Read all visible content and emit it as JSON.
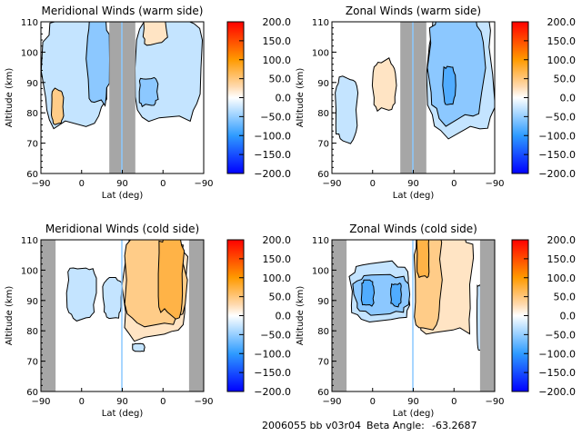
{
  "footer": {
    "run_id": "2006055 bb v03r04",
    "beta_label": "Beta Angle:",
    "beta_value": "-63.2687"
  },
  "colorbar": {
    "ticks": [
      "200.0",
      "150.0",
      "100.0",
      "50.0",
      "0.0",
      "-50.0",
      "-100.0",
      "-150.0",
      "-200.0"
    ],
    "range": [
      -200,
      200
    ],
    "stops": [
      {
        "v": 200,
        "color": "#ff0000"
      },
      {
        "v": 100,
        "color": "#ff9a00"
      },
      {
        "v": 30,
        "color": "#ffd9ad"
      },
      {
        "v": 0,
        "color": "#ffffff"
      },
      {
        "v": -30,
        "color": "#bfe2ff"
      },
      {
        "v": -100,
        "color": "#2e9bff"
      },
      {
        "v": -200,
        "color": "#0000ff"
      }
    ]
  },
  "fill_levels": {
    "pos1": "#ffe4c4",
    "pos2": "#ffcc88",
    "pos3": "#ffb347",
    "neg1": "#c4e4ff",
    "neg2": "#8cc8ff",
    "neg3": "#50acff",
    "missing": "#a6a6a6"
  },
  "chart_data": [
    {
      "type": "heatmap",
      "title": "Meridional Winds (warm side)",
      "xlabel": "Lat (deg)",
      "ylabel": "Altitude (km)",
      "xticks": [
        "-90",
        "0",
        "90",
        "0",
        "-90"
      ],
      "yticks": [
        "60",
        "70",
        "80",
        "90",
        "100",
        "110"
      ],
      "ylim": [
        60,
        110
      ],
      "missing_band_lat_index": [
        0.42,
        0.58
      ],
      "features": [
        {
          "level": "neg1",
          "lat_range": [
            0.0,
            0.42
          ],
          "alt_range": [
            74,
            110
          ]
        },
        {
          "level": "neg2",
          "lat_range": [
            0.28,
            0.42
          ],
          "alt_range": [
            82,
            110
          ]
        },
        {
          "level": "pos2",
          "lat_range": [
            0.06,
            0.14
          ],
          "alt_range": [
            76,
            88
          ]
        },
        {
          "level": "neg1",
          "lat_range": [
            0.58,
            1.0
          ],
          "alt_range": [
            76,
            110
          ]
        },
        {
          "level": "neg2",
          "lat_range": [
            0.6,
            0.72
          ],
          "alt_range": [
            82,
            92
          ]
        },
        {
          "level": "pos1",
          "lat_range": [
            0.62,
            0.78
          ],
          "alt_range": [
            102,
            110
          ]
        }
      ]
    },
    {
      "type": "heatmap",
      "title": "Zonal Winds (warm side)",
      "xlabel": "Lat (deg)",
      "ylabel": "Altitude (km)",
      "xticks": [
        "-90",
        "0",
        "90",
        "0",
        "-90"
      ],
      "yticks": [
        "60",
        "70",
        "80",
        "90",
        "100",
        "110"
      ],
      "ylim": [
        60,
        110
      ],
      "missing_band_lat_index": [
        0.42,
        0.58
      ],
      "features": [
        {
          "level": "pos1",
          "lat_range": [
            0.25,
            0.4
          ],
          "alt_range": [
            80,
            98
          ]
        },
        {
          "level": "neg1",
          "lat_range": [
            0.02,
            0.16
          ],
          "alt_range": [
            70,
            92
          ]
        },
        {
          "level": "neg1",
          "lat_range": [
            0.58,
            1.0
          ],
          "alt_range": [
            72,
            110
          ]
        },
        {
          "level": "neg2",
          "lat_range": [
            0.58,
            0.95
          ],
          "alt_range": [
            76,
            110
          ]
        },
        {
          "level": "neg3",
          "lat_range": [
            0.68,
            0.76
          ],
          "alt_range": [
            82,
            96
          ]
        }
      ]
    },
    {
      "type": "heatmap",
      "title": "Meridional Winds (cold side)",
      "xlabel": "Lat (deg)",
      "ylabel": "Altitude (km)",
      "xticks": [
        "-90",
        "0",
        "90",
        "0",
        "-90"
      ],
      "yticks": [
        "60",
        "70",
        "80",
        "90",
        "100",
        "110"
      ],
      "ylim": [
        60,
        110
      ],
      "missing_band_lat_index": [
        [
          0.0,
          0.09
        ],
        [
          0.91,
          1.0
        ]
      ],
      "features": [
        {
          "level": "neg1",
          "lat_range": [
            0.16,
            0.34
          ],
          "alt_range": [
            83,
            102
          ]
        },
        {
          "level": "neg1",
          "lat_range": [
            0.38,
            0.5
          ],
          "alt_range": [
            84,
            98
          ]
        },
        {
          "level": "pos1",
          "lat_range": [
            0.5,
            0.9
          ],
          "alt_range": [
            76,
            110
          ]
        },
        {
          "level": "pos2",
          "lat_range": [
            0.5,
            0.9
          ],
          "alt_range": [
            80,
            110
          ]
        },
        {
          "level": "pos3",
          "lat_range": [
            0.72,
            0.88
          ],
          "alt_range": [
            84,
            110
          ]
        },
        {
          "level": "neg1",
          "lat_range": [
            0.56,
            0.64
          ],
          "alt_range": [
            73,
            76
          ]
        }
      ]
    },
    {
      "type": "heatmap",
      "title": "Zonal Winds (cold side)",
      "xlabel": "Lat (deg)",
      "ylabel": "Altitude (km)",
      "xticks": [
        "-90",
        "0",
        "90",
        "0",
        "-90"
      ],
      "yticks": [
        "60",
        "70",
        "80",
        "90",
        "100",
        "110"
      ],
      "ylim": [
        60,
        110
      ],
      "missing_band_lat_index": [
        [
          0.0,
          0.09
        ],
        [
          0.91,
          1.0
        ]
      ],
      "features": [
        {
          "level": "neg1",
          "lat_range": [
            0.1,
            0.5
          ],
          "alt_range": [
            83,
            103
          ]
        },
        {
          "level": "neg2",
          "lat_range": [
            0.12,
            0.48
          ],
          "alt_range": [
            85,
            99
          ]
        },
        {
          "level": "neg3",
          "lat_range": [
            0.18,
            0.26
          ],
          "alt_range": [
            88,
            97
          ]
        },
        {
          "level": "neg3",
          "lat_range": [
            0.36,
            0.43
          ],
          "alt_range": [
            88,
            96
          ]
        },
        {
          "level": "pos1",
          "lat_range": [
            0.5,
            0.88
          ],
          "alt_range": [
            77,
            110
          ]
        },
        {
          "level": "pos2",
          "lat_range": [
            0.5,
            0.68
          ],
          "alt_range": [
            80,
            110
          ]
        },
        {
          "level": "pos3",
          "lat_range": [
            0.52,
            0.6
          ],
          "alt_range": [
            97,
            110
          ]
        },
        {
          "level": "neg1",
          "lat_range": [
            0.89,
            0.92
          ],
          "alt_range": [
            72,
            97
          ]
        }
      ]
    }
  ]
}
